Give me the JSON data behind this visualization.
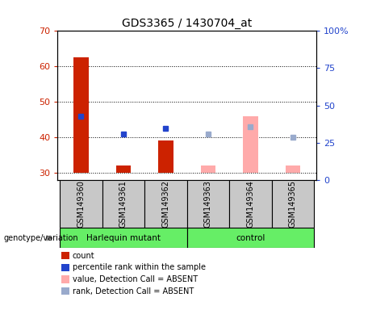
{
  "title": "GDS3365 / 1430704_at",
  "samples": [
    "GSM149360",
    "GSM149361",
    "GSM149362",
    "GSM149363",
    "GSM149364",
    "GSM149365"
  ],
  "ylim_left": [
    28,
    70
  ],
  "ylim_right": [
    0,
    100
  ],
  "yticks_left": [
    30,
    40,
    50,
    60,
    70
  ],
  "yticks_right": [
    0,
    25,
    50,
    75,
    100
  ],
  "ytick_labels_left": [
    "30",
    "40",
    "50",
    "60",
    "70"
  ],
  "ytick_labels_right": [
    "0",
    "25",
    "50",
    "75",
    "100%"
  ],
  "red_bar_values": [
    62.5,
    32.0,
    39.0,
    null,
    null,
    null
  ],
  "blue_dot_values": [
    46.0,
    41.0,
    42.5,
    null,
    null,
    null
  ],
  "pink_bar_values": [
    null,
    null,
    null,
    32.0,
    46.0,
    32.0
  ],
  "lightblue_dot_values": [
    null,
    null,
    null,
    41.0,
    43.0,
    40.0
  ],
  "bar_bottom": 30,
  "bar_color_red": "#cc2200",
  "bar_color_pink": "#ffaaaa",
  "dot_color_blue": "#2244cc",
  "dot_color_lightblue": "#99aacc",
  "bg_color_sample": "#c8c8c8",
  "bg_color_group_harlequin": "#66ee66",
  "bg_color_group_control": "#66ee66",
  "left_axis_color": "#cc2200",
  "right_axis_color": "#2244cc",
  "legend_items": [
    "count",
    "percentile rank within the sample",
    "value, Detection Call = ABSENT",
    "rank, Detection Call = ABSENT"
  ],
  "legend_colors": [
    "#cc2200",
    "#2244cc",
    "#ffaaaa",
    "#99aacc"
  ],
  "harlequin_label": "Harlequin mutant",
  "control_label": "control",
  "genotype_label": "genotype/variation"
}
